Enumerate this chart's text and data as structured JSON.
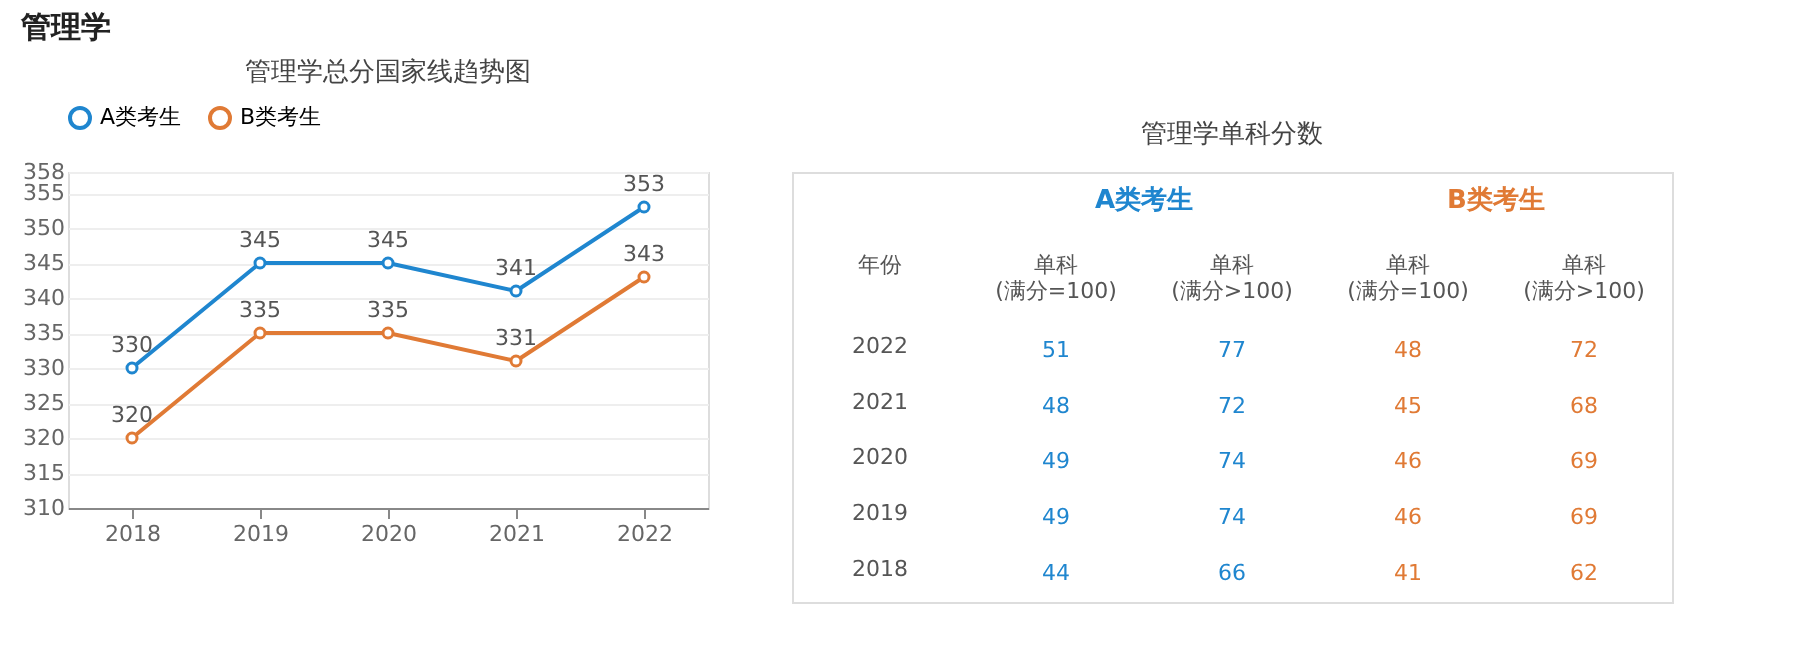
{
  "chart_data": [
    {
      "type": "line",
      "title": "管理学总分国家线趋势图",
      "annotations": [
        "管理学"
      ],
      "categories": [
        "2018",
        "2019",
        "2020",
        "2021",
        "2022"
      ],
      "series": [
        {
          "name": "A类考生",
          "color": "#1f86cf",
          "values": [
            330,
            345,
            345,
            341,
            353
          ]
        },
        {
          "name": "B类考生",
          "color": "#e07a35",
          "values": [
            320,
            335,
            335,
            331,
            343
          ]
        }
      ],
      "ylim": [
        310,
        358
      ],
      "yticks": [
        310,
        315,
        320,
        325,
        330,
        335,
        340,
        345,
        350,
        355,
        358
      ],
      "grid": "y",
      "legend": "top",
      "marker": "circle",
      "data_labels": true
    },
    {
      "type": "heatmap",
      "title": "管理学单科分数",
      "ylabel": "年份",
      "categories": [
        "单科\n(满分=100)",
        "单科\n(满分>100)",
        "单科\n(满分=100)",
        "单科\n(满分>100)"
      ],
      "y_categories": [
        "2022",
        "2021",
        "2020",
        "2019",
        "2018"
      ],
      "annotations": [
        "A类考生",
        "B类考生"
      ],
      "colors": [
        "#1f86cf",
        "#1f86cf",
        "#e07a35",
        "#e07a35"
      ],
      "data_labels": true,
      "cells": [
        [
          51,
          77,
          48,
          72
        ],
        [
          48,
          72,
          45,
          68
        ],
        [
          49,
          74,
          46,
          69
        ],
        [
          49,
          74,
          46,
          69
        ],
        [
          44,
          66,
          41,
          62
        ]
      ]
    }
  ]
}
